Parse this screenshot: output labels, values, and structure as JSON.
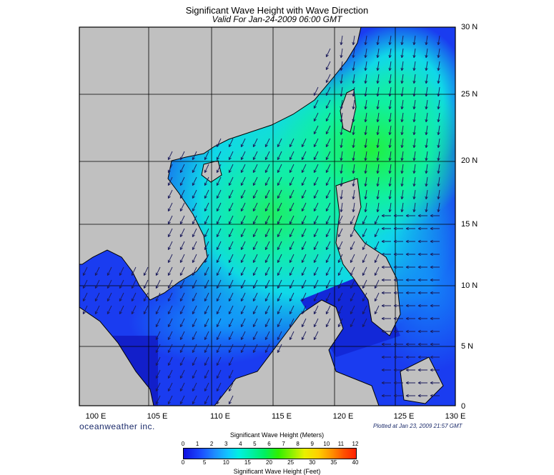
{
  "header": {
    "title": "Significant Wave Height with Wave Direction",
    "subtitle": "Valid For Jan-24-2009 06:00 GMT"
  },
  "map": {
    "lat_labels": [
      "30 N",
      "25 N",
      "20 N",
      "15 N",
      "10 N",
      "5 N",
      "0"
    ],
    "lon_labels": [
      "100 E",
      "105 E",
      "110 E",
      "115 E",
      "120 E",
      "125 E",
      "130 E"
    ],
    "lon_range": [
      100,
      130
    ],
    "lat_range": [
      0,
      30
    ],
    "land_color": "#c0c0c0",
    "sea_low_color": "#1028e0",
    "sea_high_color": "#20e060"
  },
  "footer": {
    "brand": "oceanweather inc.",
    "plotted": "Plotted at Jan 23, 2009 21:57 GMT"
  },
  "colorbar": {
    "title_meters": "Significant Wave Height (Meters)",
    "title_feet": "Significant Wave Height (Feet)",
    "meter_ticks": [
      "0",
      "1",
      "2",
      "3",
      "4",
      "5",
      "6",
      "7",
      "8",
      "9",
      "10",
      "11",
      "12"
    ],
    "feet_ticks": [
      "0",
      "5",
      "10",
      "15",
      "20",
      "25",
      "30",
      "35",
      "40"
    ]
  }
}
